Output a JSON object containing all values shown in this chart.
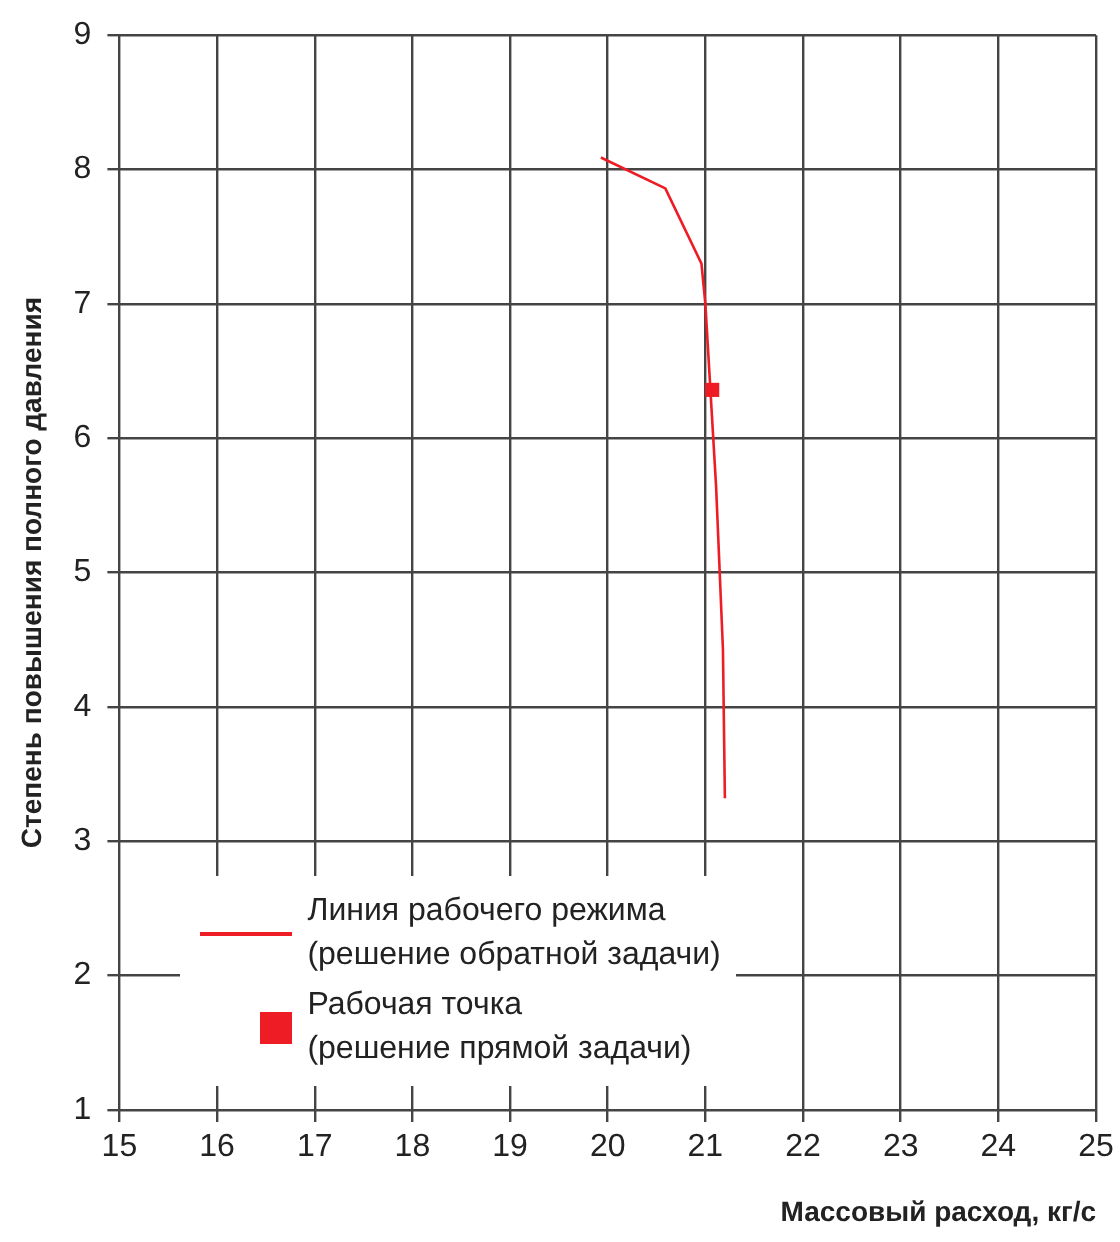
{
  "chart_data": {
    "type": "line",
    "xlabel": "Массовый расход, кг/с",
    "ylabel": "Степень повышения полного давления",
    "xlim": [
      15,
      25
    ],
    "xticks": [
      15,
      16,
      17,
      18,
      19,
      20,
      21,
      22,
      23,
      24,
      25
    ],
    "ylim": [
      1,
      9
    ],
    "yticks": [
      1,
      2,
      3,
      4,
      5,
      6,
      7,
      8,
      9
    ],
    "grid": true,
    "legend": "bottom left",
    "series": [
      {
        "name": "Линия рабочего режима (решение обратной задачи)",
        "color": "#ee1c25",
        "x": [
          19.93,
          20.59,
          20.96,
          21.0,
          21.11,
          21.18,
          21.2
        ],
        "values": [
          8.09,
          7.86,
          7.3,
          7.0,
          5.64,
          4.43,
          3.32
        ]
      },
      {
        "name": "Рабочая точка (решение прямой задачи)",
        "type": "scatter",
        "marker": "square",
        "color": "#ee1c25",
        "x": [
          21.07
        ],
        "values": [
          6.36
        ]
      }
    ]
  }
}
